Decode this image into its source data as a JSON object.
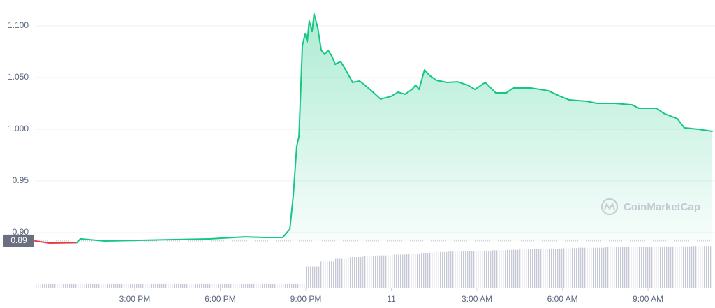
{
  "chart_data": {
    "type": "line",
    "series": [
      {
        "name": "Price",
        "color": "#16c784",
        "down_color": "#ea3943",
        "x": [
          11.5,
          12.0,
          12.97,
          13.09,
          13.95,
          15.17,
          17.62,
          18.85,
          19.58,
          20.19,
          20.44,
          20.56,
          20.68,
          20.76,
          20.88,
          20.98,
          21.05,
          21.12,
          21.22,
          21.29,
          21.42,
          21.54,
          21.66,
          21.78,
          21.91,
          22.03,
          22.22,
          22.4,
          22.64,
          22.89,
          23.01,
          23.25,
          23.62,
          23.99,
          24.23,
          24.48,
          24.72,
          24.85,
          24.97,
          25.16,
          25.34,
          25.58,
          25.95,
          26.32,
          26.68,
          26.93,
          27.29,
          27.66,
          28.03,
          28.27,
          28.89,
          29.5,
          29.87,
          30.23,
          30.85,
          31.21,
          31.83,
          32.44,
          32.68,
          33.3,
          33.54,
          34.03,
          34.27,
          34.76,
          35.25
        ],
        "values": [
          0.892,
          0.8899,
          0.8903,
          0.894,
          0.8919,
          0.8926,
          0.8939,
          0.8959,
          0.8953,
          0.8953,
          0.9034,
          0.9358,
          0.9831,
          0.9932,
          1.0811,
          1.0926,
          1.0845,
          1.1047,
          1.0946,
          1.1115,
          1.098,
          1.0764,
          1.0723,
          1.0764,
          1.0709,
          1.0628,
          1.0655,
          1.0574,
          1.0453,
          1.0466,
          1.0439,
          1.0385,
          1.0291,
          1.0318,
          1.0358,
          1.0338,
          1.0385,
          1.0426,
          1.0385,
          1.0574,
          1.052,
          1.0473,
          1.0453,
          1.0459,
          1.0426,
          1.0385,
          1.0453,
          1.0351,
          1.0351,
          1.0399,
          1.0399,
          1.0372,
          1.0324,
          1.0284,
          1.027,
          1.025,
          1.025,
          1.0236,
          1.0203,
          1.0203,
          1.0155,
          1.0101,
          1.0014,
          1.0,
          0.998
        ]
      }
    ],
    "reference": {
      "value": 0.892,
      "label": "0.89"
    },
    "volume": {
      "color": "#c5c9d6",
      "ylim": [
        0,
        100
      ],
      "x": [
        11.5,
        12.0,
        12.5,
        13.0,
        13.5,
        14.0,
        14.5,
        15.0,
        15.5,
        16.0,
        16.5,
        17.0,
        17.5,
        18.0,
        18.5,
        19.0,
        19.5,
        20.0,
        20.5,
        21.0,
        21.5,
        22.0,
        22.5,
        23.0,
        23.5,
        24.0,
        24.5,
        25.0,
        25.5,
        26.0,
        26.5,
        27.0,
        27.5,
        28.0,
        28.5,
        29.0,
        29.5,
        30.0,
        30.5,
        31.0,
        31.5,
        32.0,
        32.5,
        33.0,
        33.5,
        34.0,
        34.5,
        35.0
      ],
      "values": [
        10,
        10,
        10,
        10,
        10,
        10,
        10,
        10,
        10,
        10,
        10,
        10,
        10,
        10,
        10,
        10,
        10,
        10,
        10,
        50,
        62,
        68,
        72,
        74,
        76,
        78,
        80,
        82,
        84,
        85,
        86,
        87,
        88,
        89,
        90,
        91,
        92,
        93,
        94,
        94,
        95,
        95,
        96,
        96,
        97,
        97,
        98,
        98
      ]
    },
    "xlim": [
      11.5,
      35.25
    ],
    "xticks": [
      {
        "value": 15,
        "label": "3:00 PM"
      },
      {
        "value": 18,
        "label": "6:00 PM"
      },
      {
        "value": 21,
        "label": "9:00 PM"
      },
      {
        "value": 24,
        "label": "11"
      },
      {
        "value": 27,
        "label": "3:00 AM"
      },
      {
        "value": 30,
        "label": "6:00 AM"
      },
      {
        "value": 33,
        "label": "9:00 AM"
      }
    ],
    "ylim": [
      0.89,
      1.12
    ],
    "yticks": [
      {
        "value": 1.1,
        "label": "1.100"
      },
      {
        "value": 1.05,
        "label": "1.050"
      },
      {
        "value": 1.0,
        "label": "1.000"
      },
      0.95,
      {
        "value": 0.9,
        "label": "0.90"
      }
    ],
    "grid": true,
    "watermark": "CoinMarketCap"
  }
}
